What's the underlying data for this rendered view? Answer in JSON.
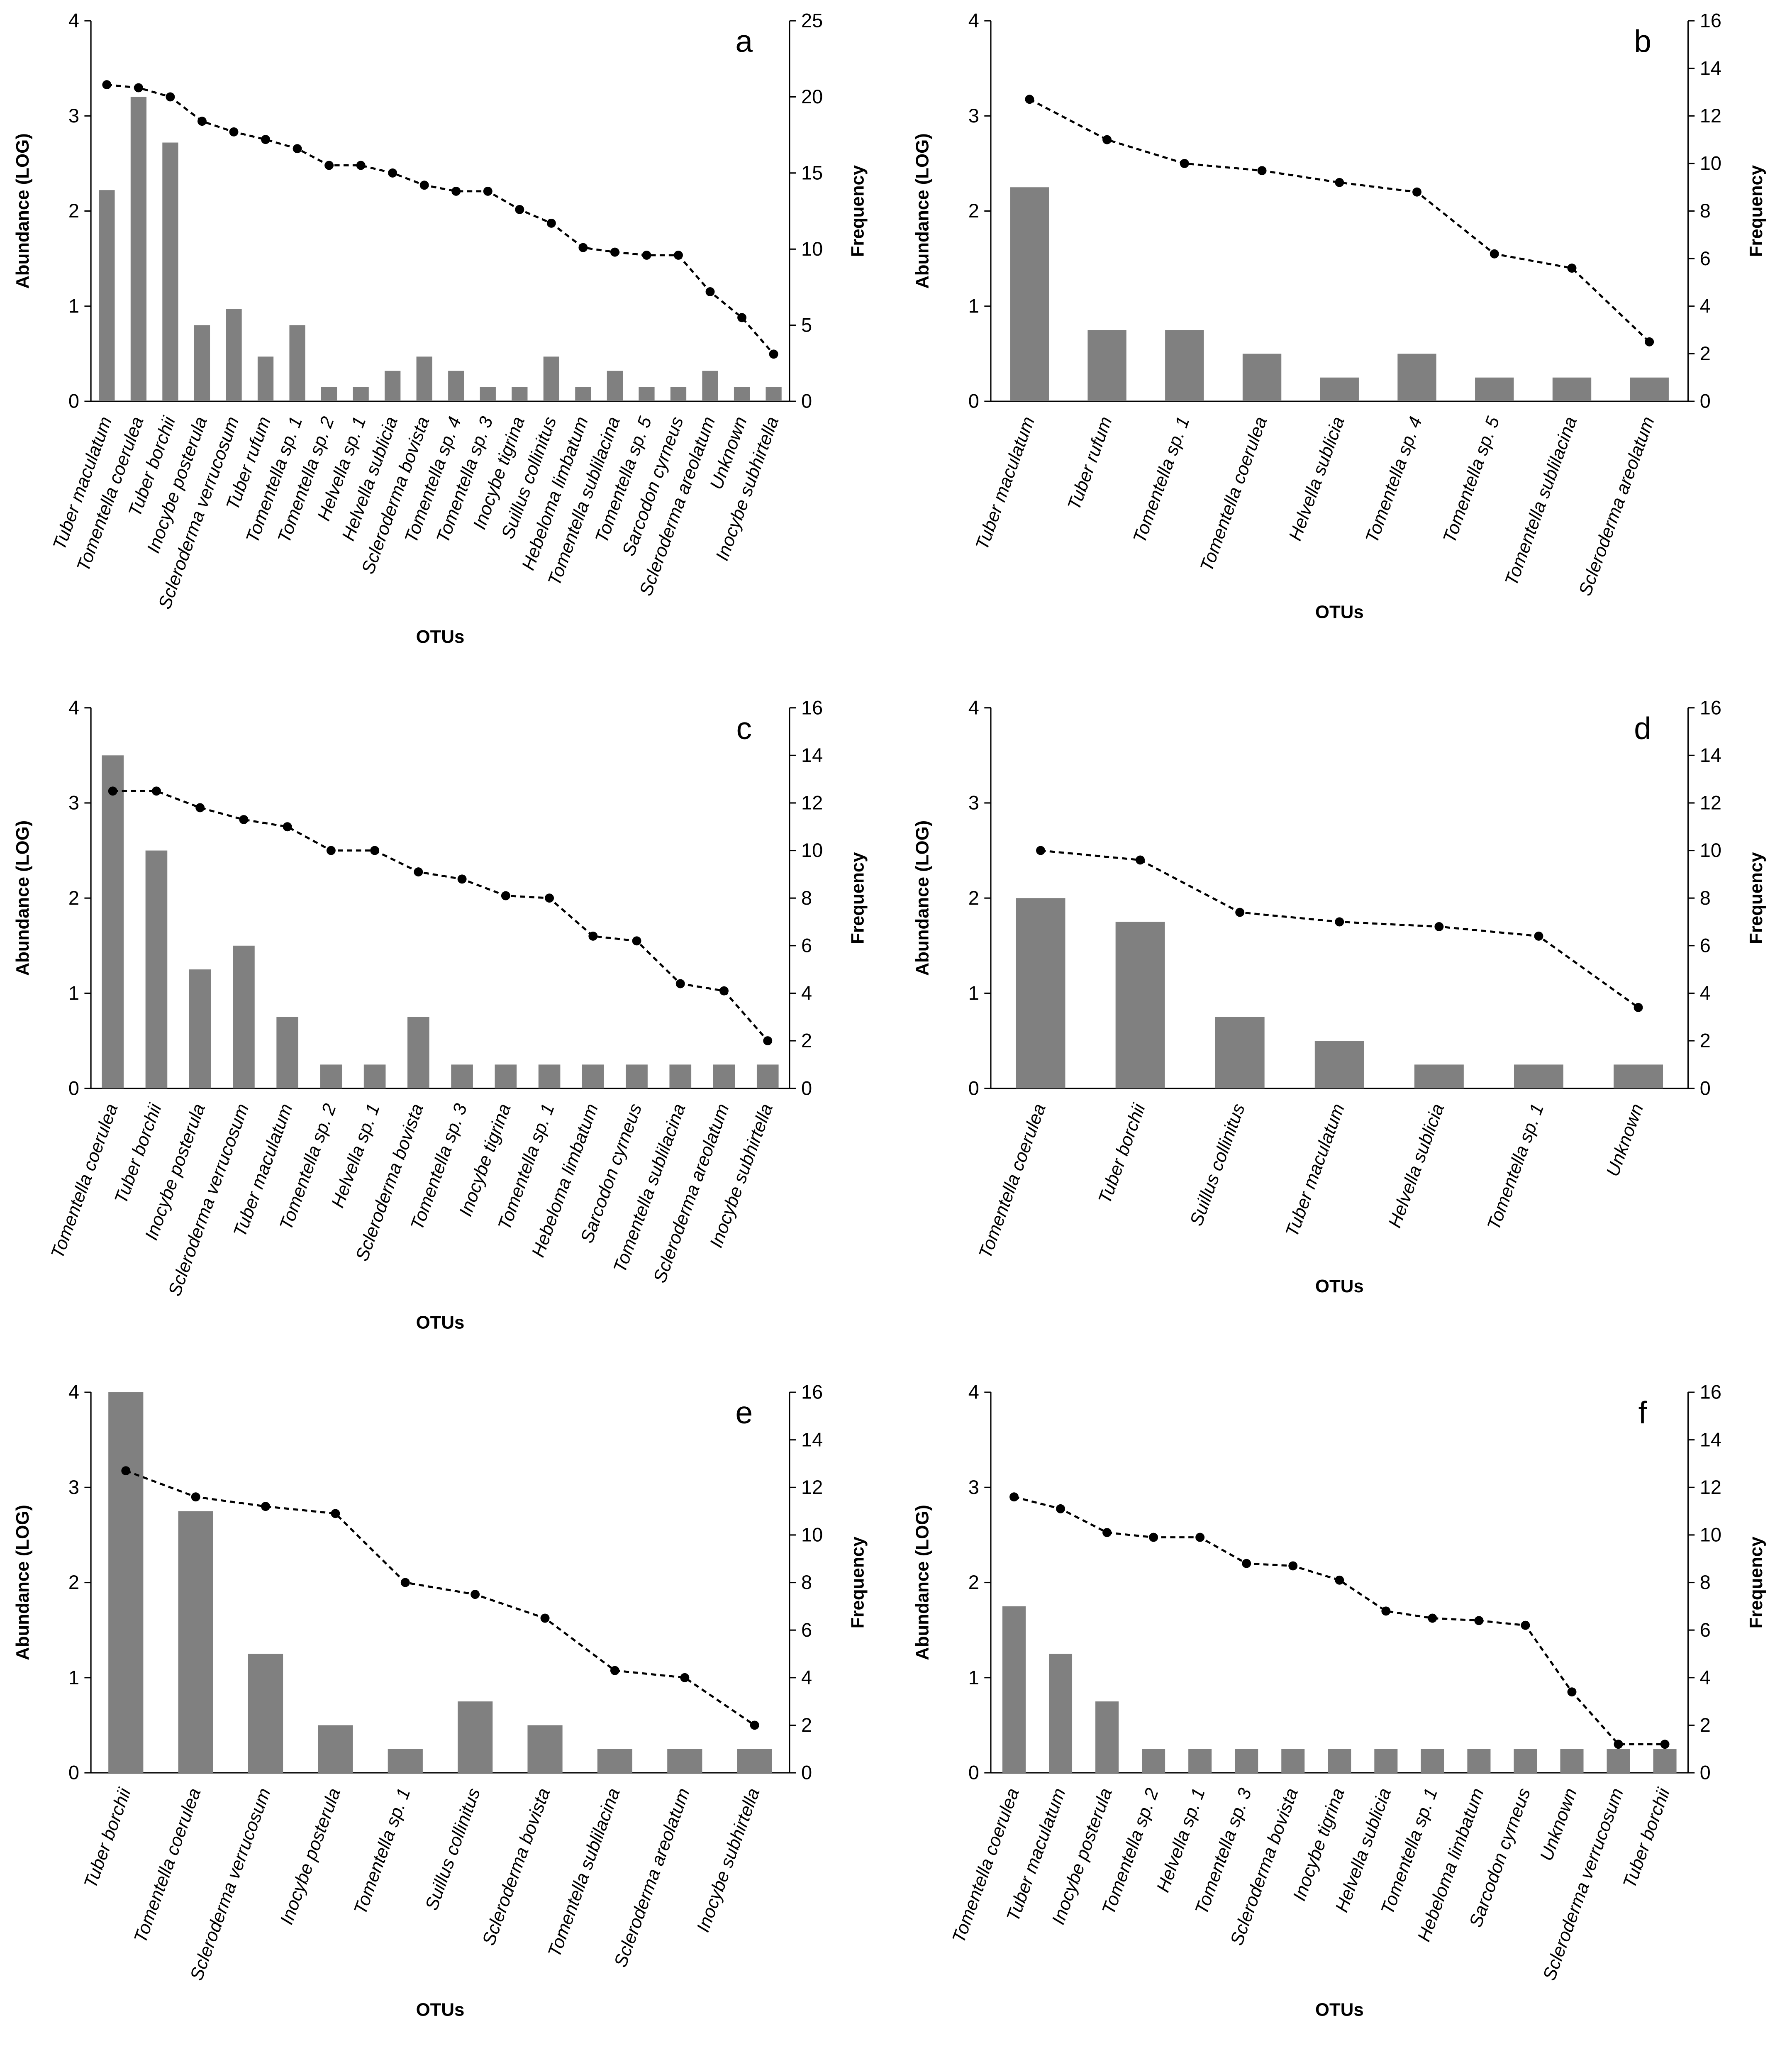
{
  "chart_data": [
    {
      "type": "bar",
      "label": "a",
      "xlabel": "OTUs",
      "ylabel": "Abundance (LOG)",
      "y2label": "Frequency",
      "categories": [
        "Tuber maculatum",
        "Tomentella coerulea",
        "Tuber borchii",
        "Inocybe posterula",
        "Scleroderma verrucosum",
        "Tuber rufum",
        "Tomentella sp. 1",
        "Tomentella sp. 2",
        "Helvella sp. 1",
        "Helvella sublicia",
        "Scleroderma bovista",
        "Tomentella sp. 4",
        "Tomentella sp. 3",
        "Inocybe tigrina",
        "Suillus collinitus",
        "Hebeloma limbatum",
        "Tomentella sublilacina",
        "Tomentella sp. 5",
        "Sarcodon cyrneus",
        "Scleroderma areolatum",
        "Unknown",
        "Inocybe subhirtella"
      ],
      "series": [
        {
          "color": "#808080",
          "values": [
            2.22,
            3.2,
            2.72,
            0.8,
            0.97,
            0.47,
            0.8,
            0.15,
            0.15,
            0.32,
            0.47,
            0.32,
            0.15,
            0.15,
            0.47,
            0.15,
            0.32,
            0.15,
            0.15,
            0.32,
            0.15,
            0.15
          ]
        },
        {
          "type": "line",
          "axis": "y2",
          "color": "#000000",
          "values": [
            20.8,
            20.6,
            20,
            18.4,
            17.7,
            17.2,
            16.6,
            15.5,
            15.5,
            15,
            14.2,
            13.8,
            13.8,
            12.6,
            11.7,
            10.1,
            9.8,
            9.6,
            9.6,
            7.2,
            5.5,
            3.1
          ]
        }
      ],
      "ylim": [
        0,
        4
      ],
      "yticks": [
        0,
        1,
        2,
        3,
        4
      ],
      "y2lim": [
        0,
        25
      ],
      "y2ticks": [
        0,
        5,
        10,
        15,
        20,
        25
      ]
    },
    {
      "type": "bar",
      "label": "b",
      "xlabel": "OTUs",
      "ylabel": "Abundance (LOG)",
      "y2label": "Frequency",
      "categories": [
        "Tuber maculatum",
        "Tuber rufum",
        "Tomentella sp. 1",
        "Tomentella coerulea",
        "Helvella sublicia",
        "Tomentella sp. 4",
        "Tomentella sp. 5",
        "Tomentella sublilacina",
        "Scleroderma areolatum"
      ],
      "series": [
        {
          "color": "#808080",
          "values": [
            2.25,
            0.75,
            0.75,
            0.5,
            0.25,
            0.5,
            0.25,
            0.25,
            0.25
          ]
        },
        {
          "type": "line",
          "axis": "y2",
          "color": "#000000",
          "values": [
            12.7,
            11,
            10,
            9.7,
            9.2,
            8.8,
            6.2,
            5.6,
            2.5
          ]
        }
      ],
      "ylim": [
        0,
        4
      ],
      "yticks": [
        0,
        1,
        2,
        3,
        4
      ],
      "y2lim": [
        0,
        16
      ],
      "y2ticks": [
        0,
        2,
        4,
        6,
        8,
        10,
        12,
        14,
        16
      ]
    },
    {
      "type": "bar",
      "label": "c",
      "xlabel": "OTUs",
      "ylabel": "Abundance (LOG)",
      "y2label": "Frequency",
      "categories": [
        "Tomentella coerulea",
        "Tuber borchii",
        "Inocybe posterula",
        "Scleroderma verrucosum",
        "Tuber maculatum",
        "Tomentella sp. 2",
        "Helvella sp. 1",
        "Scleroderma bovista",
        "Tomentella sp. 3",
        "Inocybe tigrina",
        "Tomentella sp. 1",
        "Hebeloma limbatum",
        "Sarcodon cyrneus",
        "Tomentella sublilacina",
        "Scleroderma areolatum",
        "Inocybe subhirtella"
      ],
      "series": [
        {
          "color": "#808080",
          "values": [
            3.5,
            2.5,
            1.25,
            1.5,
            0.75,
            0.25,
            0.25,
            0.75,
            0.25,
            0.25,
            0.25,
            0.25,
            0.25,
            0.25,
            0.25,
            0.25
          ]
        },
        {
          "type": "line",
          "axis": "y2",
          "color": "#000000",
          "values": [
            12.5,
            12.5,
            11.8,
            11.3,
            11,
            10,
            10,
            9.1,
            8.8,
            8.1,
            8,
            6.4,
            6.2,
            4.4,
            4.1,
            2
          ]
        }
      ],
      "ylim": [
        0,
        4
      ],
      "yticks": [
        0,
        1,
        2,
        3,
        4
      ],
      "y2lim": [
        0,
        16
      ],
      "y2ticks": [
        0,
        2,
        4,
        6,
        8,
        10,
        12,
        14,
        16
      ]
    },
    {
      "type": "bar",
      "label": "d",
      "xlabel": "OTUs",
      "ylabel": "Abundance (LOG)",
      "y2label": "Frequency",
      "categories": [
        "Tomentella coerulea",
        "Tuber borchii",
        "Suillus collinitus",
        "Tuber maculatum",
        "Helvella sublicia",
        "Tomentella sp. 1",
        "Unknown"
      ],
      "series": [
        {
          "color": "#808080",
          "values": [
            2,
            1.75,
            0.75,
            0.5,
            0.25,
            0.25,
            0.25
          ]
        },
        {
          "type": "line",
          "axis": "y2",
          "color": "#000000",
          "values": [
            10,
            9.6,
            7.4,
            7,
            6.8,
            6.4,
            3.4
          ]
        }
      ],
      "ylim": [
        0,
        4
      ],
      "yticks": [
        0,
        1,
        2,
        3,
        4
      ],
      "y2lim": [
        0,
        16
      ],
      "y2ticks": [
        0,
        2,
        4,
        6,
        8,
        10,
        12,
        14,
        16
      ]
    },
    {
      "type": "bar",
      "label": "e",
      "xlabel": "OTUs",
      "ylabel": "Abundance (LOG)",
      "y2label": "Frequency",
      "categories": [
        "Tuber borchii",
        "Tomentella coerulea",
        "Scleroderma verrucosum",
        "Inocybe posterula",
        "Tomentella sp. 1",
        "Suillus collinitus",
        "Scleroderma bovista",
        "Tomentella sublilacina",
        "Scleroderma areolatum",
        "Inocybe subhirtella"
      ],
      "series": [
        {
          "color": "#808080",
          "values": [
            4,
            2.75,
            1.25,
            0.5,
            0.25,
            0.75,
            0.5,
            0.25,
            0.25,
            0.25
          ]
        },
        {
          "type": "line",
          "axis": "y2",
          "color": "#000000",
          "values": [
            12.7,
            11.6,
            11.2,
            10.9,
            8,
            7.5,
            6.5,
            4.3,
            4,
            2
          ]
        }
      ],
      "ylim": [
        0,
        4
      ],
      "yticks": [
        0,
        1,
        2,
        3,
        4
      ],
      "y2lim": [
        0,
        16
      ],
      "y2ticks": [
        0,
        2,
        4,
        6,
        8,
        10,
        12,
        14,
        16
      ]
    },
    {
      "type": "bar",
      "label": "f",
      "xlabel": "OTUs",
      "ylabel": "Abundance (LOG)",
      "y2label": "Frequency",
      "categories": [
        "Tomentella coerulea",
        "Tuber maculatum",
        "Inocybe posterula",
        "Tomentella sp. 2",
        "Helvella sp. 1",
        "Tomentella sp. 3",
        "Scleroderma bovista",
        "Inocybe tigrina",
        "Helvella sublicia",
        "Tomentella sp. 1",
        "Hebeloma limbatum",
        "Sarcodon cyrneus",
        "Unknown",
        "Scleroderma verrucosum",
        "Tuber borchii"
      ],
      "series": [
        {
          "color": "#808080",
          "values": [
            1.75,
            1.25,
            0.75,
            0.25,
            0.25,
            0.25,
            0.25,
            0.25,
            0.25,
            0.25,
            0.25,
            0.25,
            0.25,
            0.25,
            0.25
          ]
        },
        {
          "type": "line",
          "axis": "y2",
          "color": "#000000",
          "values": [
            11.6,
            11.1,
            10.1,
            9.9,
            9.9,
            8.8,
            8.7,
            8.1,
            6.8,
            6.5,
            6.4,
            6.2,
            3.4,
            1.2,
            1.2
          ]
        }
      ],
      "ylim": [
        0,
        4
      ],
      "yticks": [
        0,
        1,
        2,
        3,
        4
      ],
      "y2lim": [
        0,
        16
      ],
      "y2ticks": [
        0,
        2,
        4,
        6,
        8,
        10,
        12,
        14,
        16
      ]
    }
  ]
}
